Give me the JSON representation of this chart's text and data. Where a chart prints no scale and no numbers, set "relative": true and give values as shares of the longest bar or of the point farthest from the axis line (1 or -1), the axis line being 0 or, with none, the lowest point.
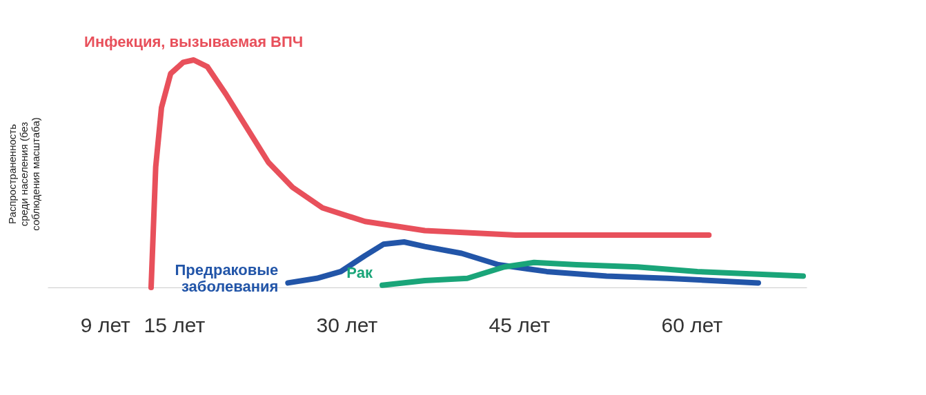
{
  "chart_data": {
    "type": "line",
    "relative": true,
    "ylabel": "Распространенность среди населения (без соблюдения масштаба)",
    "xlim": [
      4,
      70
    ],
    "xticks": [
      {
        "value": 9,
        "label": "9 лет"
      },
      {
        "value": 15,
        "label": "15 лет"
      },
      {
        "value": 30,
        "label": "30 лет"
      },
      {
        "value": 45,
        "label": "45 лет"
      },
      {
        "value": 60,
        "label": "60 лет"
      }
    ],
    "grid": false,
    "line_style": "solid",
    "series": [
      {
        "name": "Инфекция, вызываемая ВПЧ",
        "color": "#e8505b",
        "x": [
          13.0,
          13.4,
          13.9,
          14.7,
          15.8,
          16.7,
          17.9,
          19.5,
          21.1,
          23.2,
          25.3,
          27.9,
          31.6,
          36.8,
          44.7,
          52.6,
          61.5
        ],
        "values": [
          0,
          0.53,
          0.79,
          0.94,
          0.99,
          1,
          0.97,
          0.85,
          0.72,
          0.55,
          0.44,
          0.35,
          0.29,
          0.25,
          0.23,
          0.23,
          0.23
        ]
      },
      {
        "name": "Предраковые заболевания",
        "color": "#2255a8",
        "x": [
          24.9,
          27.4,
          29.5,
          31.6,
          33.2,
          35.0,
          36.8,
          40.0,
          43.2,
          47.4,
          52.6,
          57.9,
          65.8
        ],
        "values": [
          0.02,
          0.04,
          0.07,
          0.14,
          0.19,
          0.2,
          0.18,
          0.15,
          0.1,
          0.07,
          0.05,
          0.04,
          0.02
        ]
      },
      {
        "name": "Рак",
        "color": "#1aa579",
        "x": [
          33.1,
          36.8,
          40.5,
          43.7,
          46.3,
          50.0,
          55.3,
          60.5,
          69.7
        ],
        "values": [
          0.01,
          0.03,
          0.04,
          0.09,
          0.11,
          0.1,
          0.09,
          0.07,
          0.05
        ]
      }
    ]
  }
}
